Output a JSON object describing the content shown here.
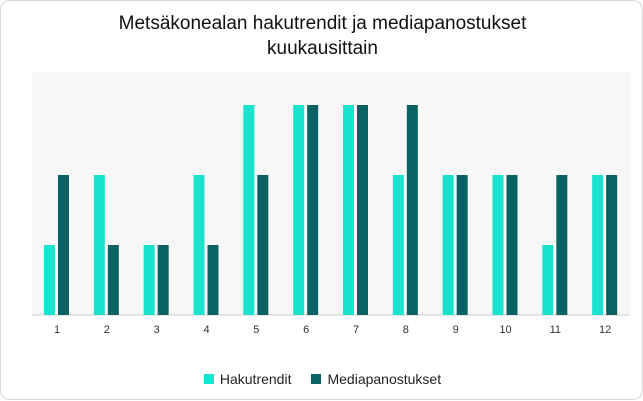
{
  "chart_data": {
    "type": "bar",
    "title_line1": "Metsäkonealan hakutrendit ja mediapanostukset",
    "title_line2": "kuukausittain",
    "categories": [
      "1",
      "2",
      "3",
      "4",
      "5",
      "6",
      "7",
      "8",
      "9",
      "10",
      "11",
      "12"
    ],
    "series": [
      {
        "name": "Hakutrendit",
        "color": "#19e3cf",
        "values": [
          1,
          2,
          1,
          2,
          3,
          3,
          3,
          2,
          2,
          2,
          1,
          2
        ]
      },
      {
        "name": "Mediapanostukset",
        "color": "#0a6264",
        "values": [
          2,
          1,
          1,
          1,
          2,
          3,
          3,
          3,
          2,
          2,
          2,
          2
        ]
      }
    ],
    "ylim": [
      0,
      3.3
    ],
    "grid": false,
    "legend_position": "bottom"
  }
}
